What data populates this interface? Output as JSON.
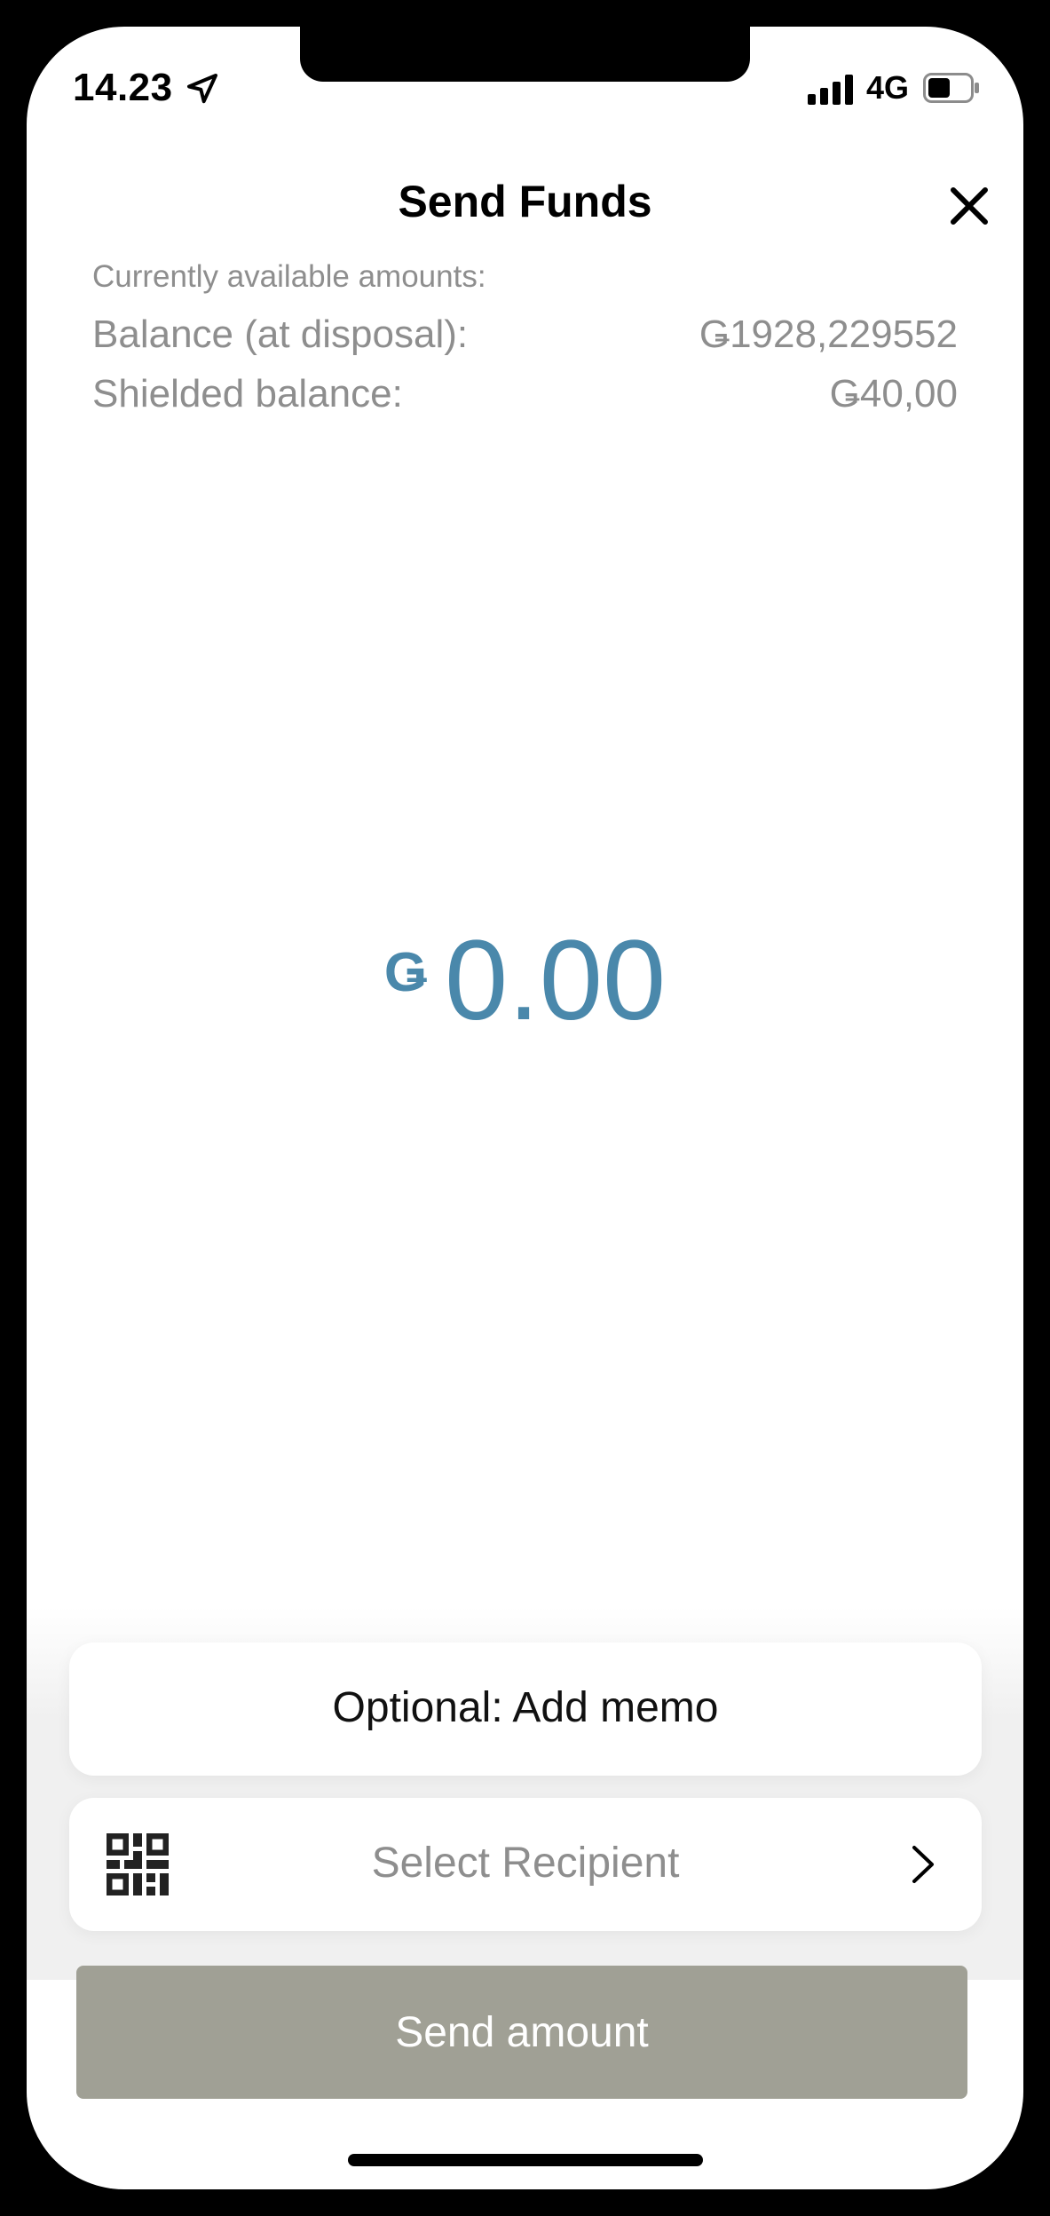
{
  "status_bar": {
    "time": "14.23",
    "network": "4G",
    "location_icon": "location-arrow-icon",
    "signal_icon": "cellular-signal-icon",
    "battery_icon": "battery-icon"
  },
  "header": {
    "title": "Send Funds",
    "close_icon": "close-icon"
  },
  "balances": {
    "caption": "Currently available amounts:",
    "balance_label": "Balance (at disposal):",
    "balance_value": "Ǥ1928,229552",
    "shielded_label": "Shielded balance:",
    "shielded_value": "Ǥ40,00"
  },
  "amount": {
    "currency_symbol": "Ǥ",
    "value": "0.00"
  },
  "memo": {
    "label": "Optional: Add memo"
  },
  "recipient": {
    "placeholder": "Select Recipient",
    "qr_icon": "qr-code-icon",
    "chevron_icon": "chevron-right-icon"
  },
  "send_button": {
    "label": "Send amount"
  },
  "colors": {
    "amount_accent": "#4a88ab",
    "muted_text": "#8e8e8e",
    "button_disabled": "#a0a095"
  }
}
